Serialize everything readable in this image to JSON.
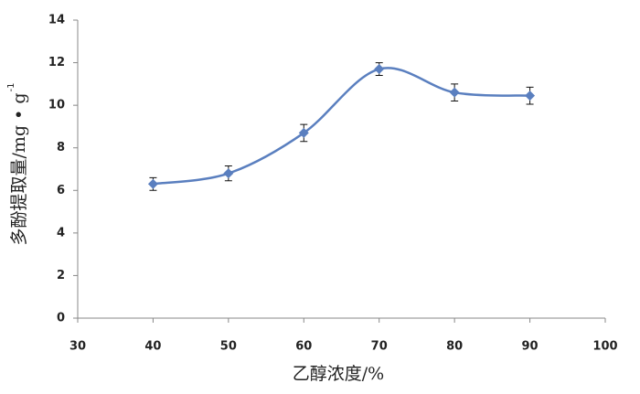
{
  "chart_data": {
    "type": "line",
    "x_label": "乙醇浓度/%",
    "y_label": "多酚提取量/mg • g",
    "y_label_superscript": "-1",
    "x": [
      40,
      50,
      60,
      70,
      80,
      90
    ],
    "series": [
      {
        "color": "#5a7fbf",
        "values": [
          6.3,
          6.8,
          8.7,
          11.7,
          10.6,
          10.45
        ],
        "errors": [
          0.3,
          0.35,
          0.4,
          0.3,
          0.4,
          0.4
        ]
      }
    ],
    "xlim": [
      30,
      100
    ],
    "xticks": [
      30,
      40,
      50,
      60,
      70,
      80,
      90,
      100
    ],
    "ylim": [
      0,
      14
    ],
    "yticks": [
      0,
      2,
      4,
      6,
      8,
      10,
      12,
      14
    ],
    "smooth": true,
    "grid": false
  }
}
